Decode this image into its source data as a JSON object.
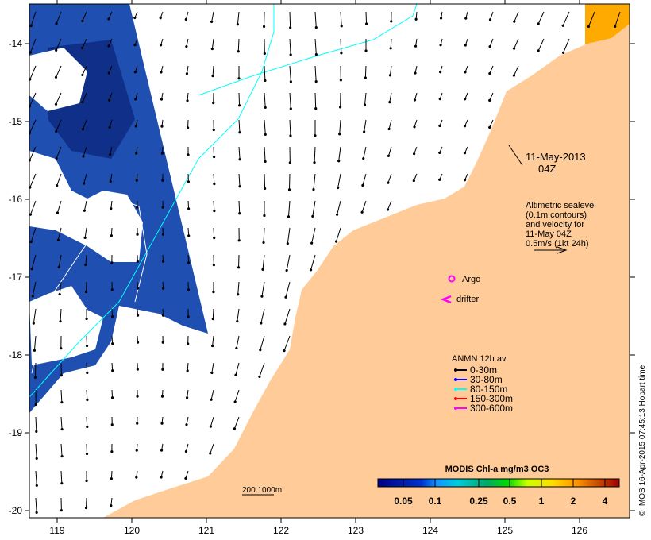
{
  "map": {
    "date_label": "11-May-2013",
    "time_label": "04Z",
    "altimetry_note": [
      "Altimetric sealevel",
      "(0.1m contours)",
      "and velocity for",
      "11-May 04Z",
      "0.5m/s (1kt 24h)"
    ],
    "argo_label": "Argo",
    "drifter_label": "drifter",
    "bathy_label": "200  1000m",
    "credit": "© IMOS 16-Apr-2015 07:45:13 Hobart time",
    "lon_ticks": [
      "119",
      "120",
      "121",
      "122",
      "123",
      "124",
      "125",
      "126"
    ],
    "lat_ticks": [
      "-14",
      "-15",
      "-16",
      "-17",
      "-18",
      "-19",
      "-20"
    ],
    "colors": {
      "land": "#ffcc99",
      "ocean": "#ffffff",
      "contour": "#00ffff",
      "argo": "#ff00ff"
    }
  },
  "legend": {
    "title": "ANMN 12h av.",
    "items": [
      {
        "label": "0-30m",
        "color": "#000000"
      },
      {
        "label": "30-80m",
        "color": "#0000ff"
      },
      {
        "label": "80-150m",
        "color": "#00ffff"
      },
      {
        "label": "150-300m",
        "color": "#ff0000"
      },
      {
        "label": "300-600m",
        "color": "#ff00ff"
      }
    ]
  },
  "colorbar": {
    "title": "MODIS Chl-a mg/m3 OC3",
    "ticks": [
      "0.05",
      "0.1",
      "0.25",
      "0.5",
      "1",
      "2",
      "4"
    ]
  }
}
